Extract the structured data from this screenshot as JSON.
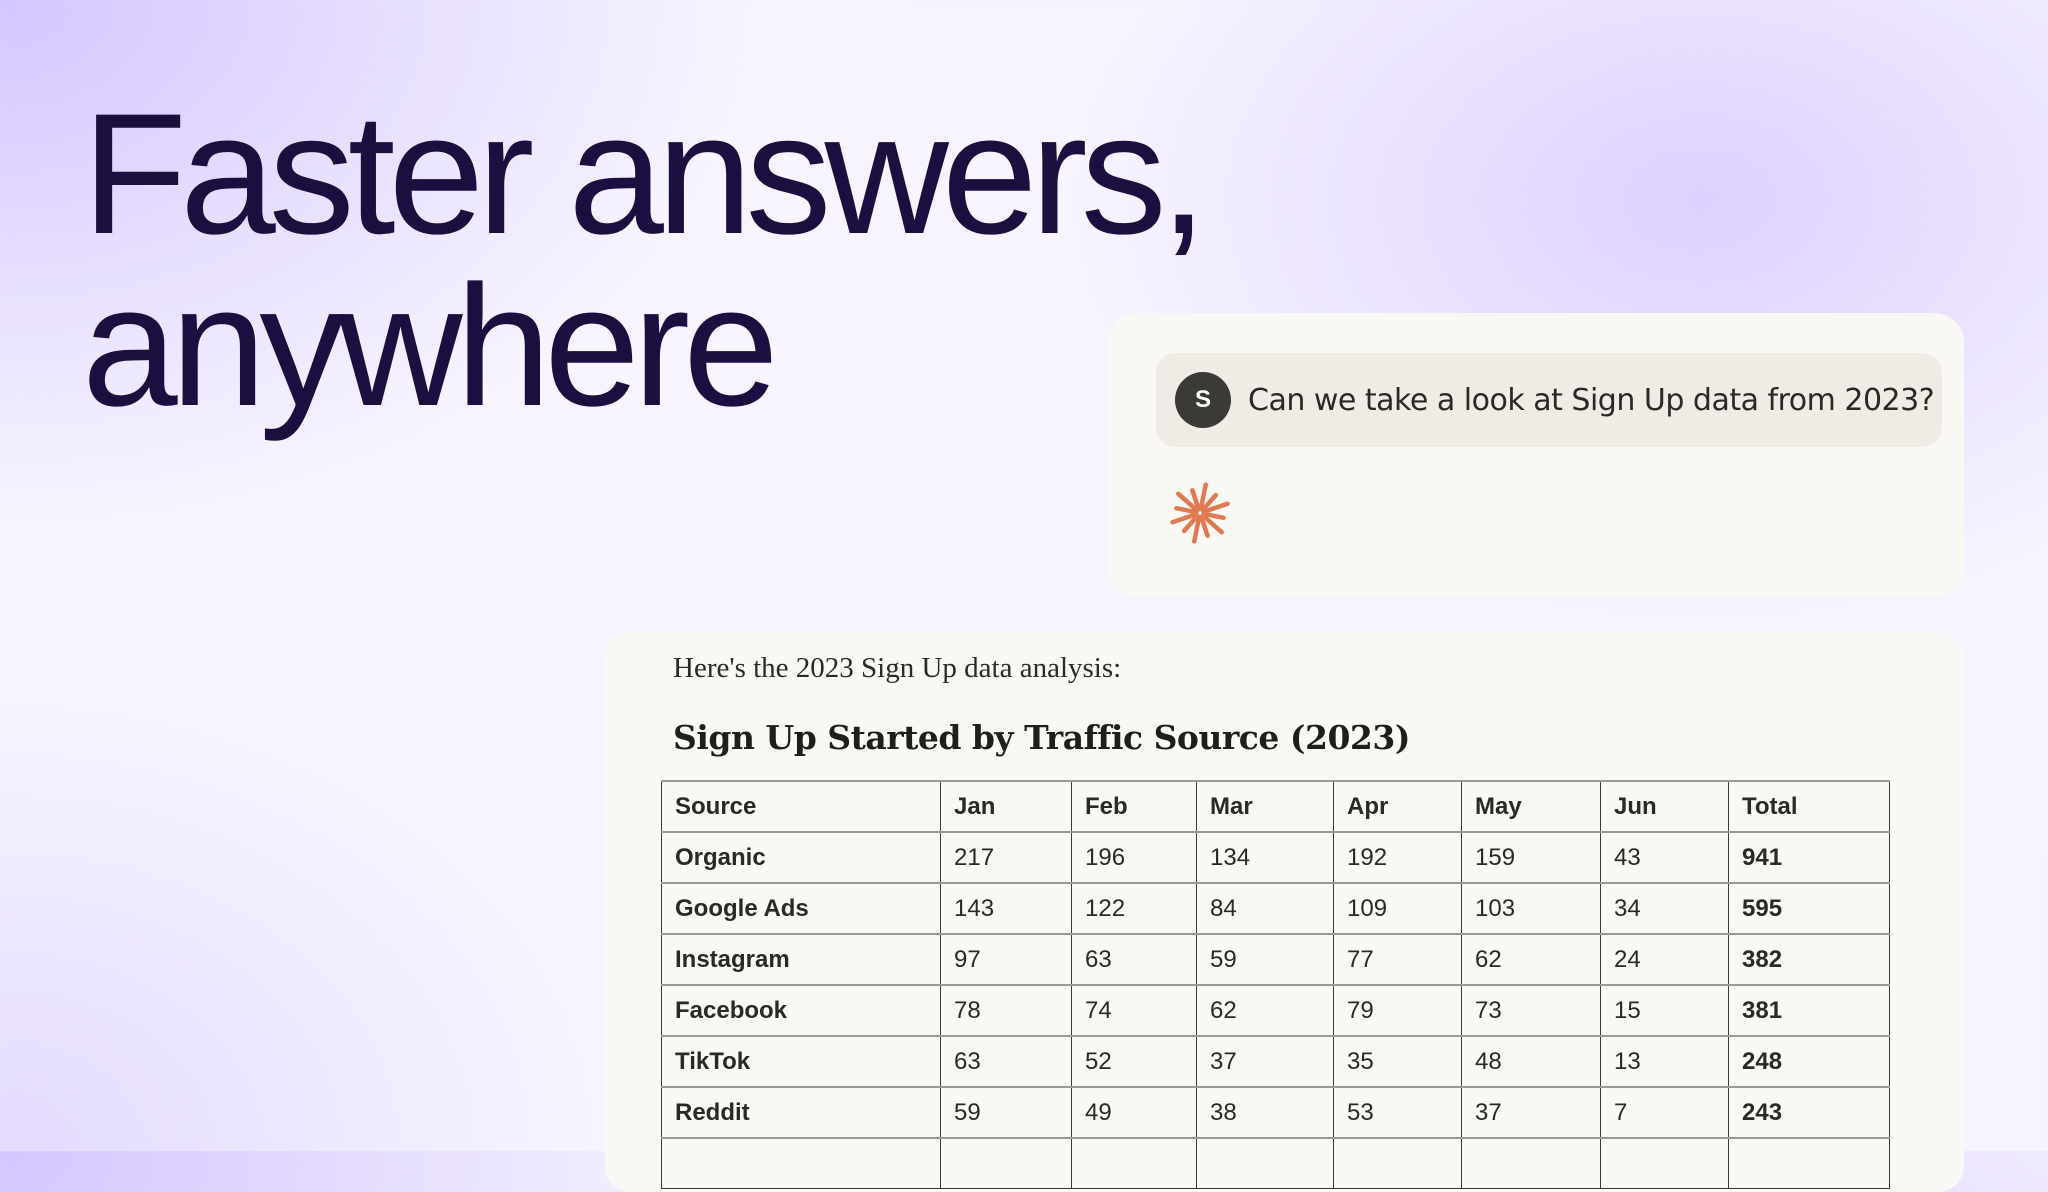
{
  "headline": {
    "line1": "Faster answers,",
    "line2": "anywhere"
  },
  "chat": {
    "avatar_initial": "S",
    "message": "Can we take a look at Sign Up data from 2023?",
    "assistant_icon": "spark-icon",
    "accent": "#e07a52"
  },
  "response": {
    "intro": "Here's the 2023 Sign Up data analysis:",
    "table_title": "Sign Up Started by Traffic Source (2023)",
    "columns": [
      "Source",
      "Jan",
      "Feb",
      "Mar",
      "Apr",
      "May",
      "Jun",
      "Total"
    ],
    "rows": [
      [
        "Organic",
        "217",
        "196",
        "134",
        "192",
        "159",
        "43",
        "941"
      ],
      [
        "Google Ads",
        "143",
        "122",
        "84",
        "109",
        "103",
        "34",
        "595"
      ],
      [
        "Instagram",
        "97",
        "63",
        "59",
        "77",
        "62",
        "24",
        "382"
      ],
      [
        "Facebook",
        "78",
        "74",
        "62",
        "79",
        "73",
        "15",
        "381"
      ],
      [
        "TikTok",
        "63",
        "52",
        "37",
        "35",
        "48",
        "13",
        "248"
      ],
      [
        "Reddit",
        "59",
        "49",
        "38",
        "53",
        "37",
        "7",
        "243"
      ]
    ]
  }
}
